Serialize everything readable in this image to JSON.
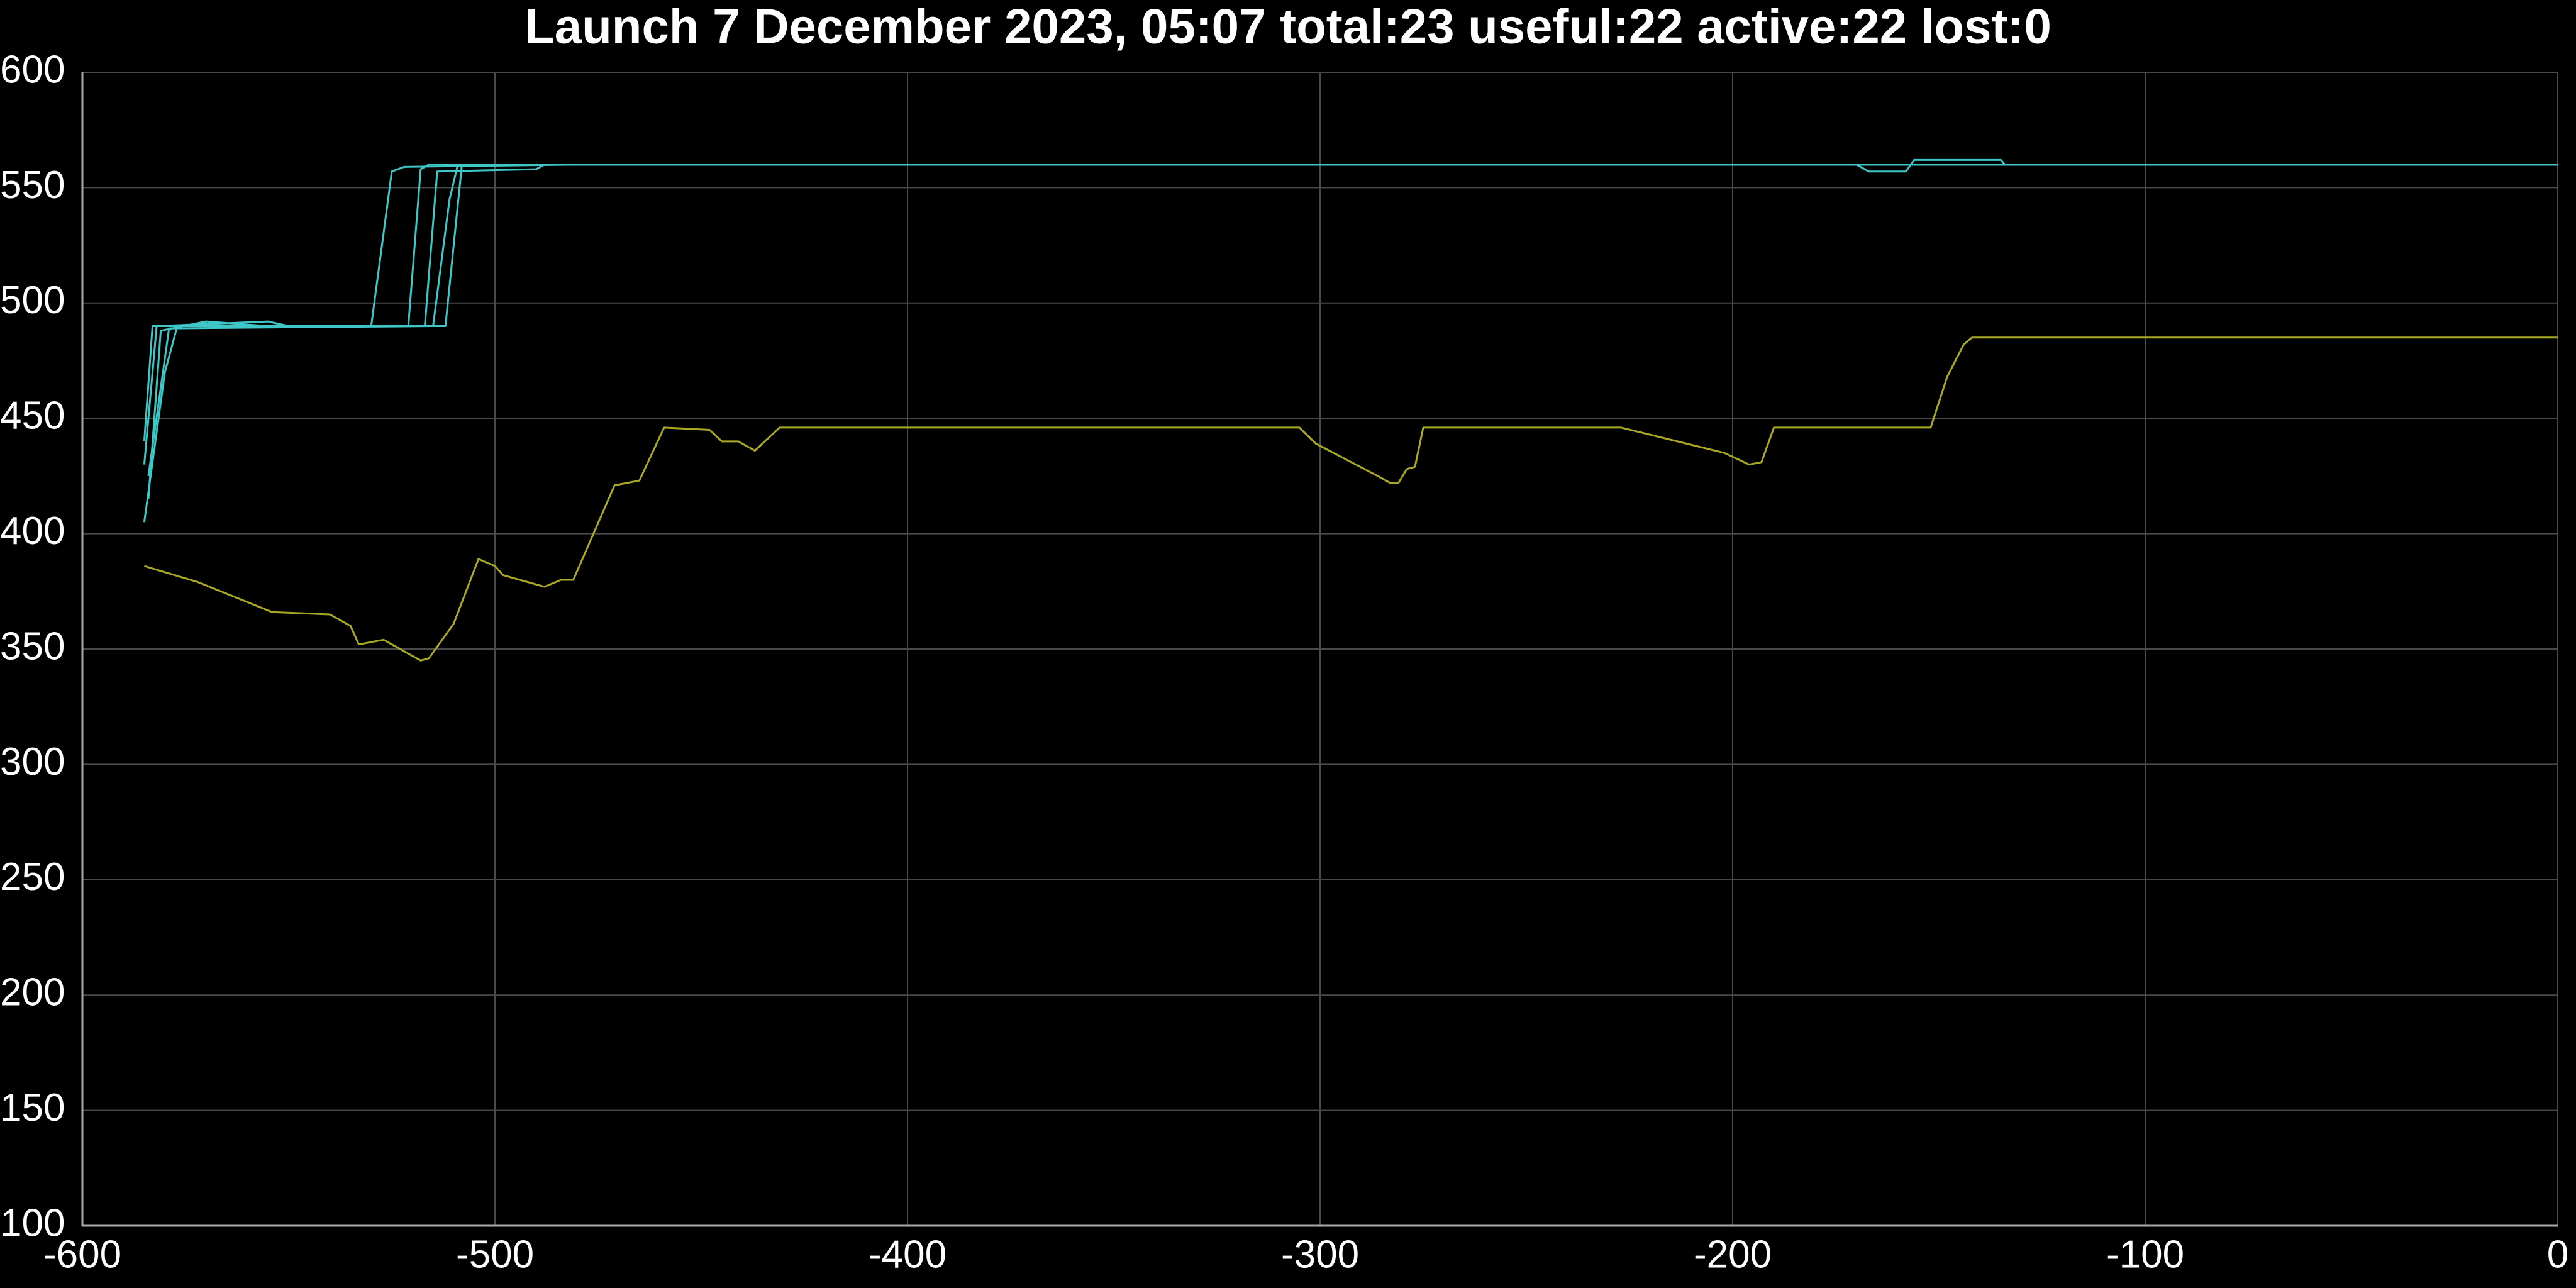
{
  "chart_data": {
    "type": "line",
    "title": "Launch 7 December 2023, 05:07 total:23 useful:22 active:22 lost:0",
    "xlim": [
      -600,
      0
    ],
    "ylim": [
      100,
      600
    ],
    "xticks": [
      -600,
      -500,
      -400,
      -300,
      -200,
      -100,
      0
    ],
    "yticks": [
      100,
      150,
      200,
      250,
      300,
      350,
      400,
      450,
      500,
      550,
      600
    ],
    "grid": true,
    "series": [
      {
        "color": "#3fc6c6",
        "x": [
          -585,
          -580,
          -577,
          -560,
          -540,
          -512,
          -508,
          0
        ],
        "values": [
          405,
          470,
          490,
          490,
          490,
          490,
          560,
          560
        ]
      },
      {
        "color": "#3fc6c6",
        "x": [
          -584,
          -581,
          -570,
          -555,
          -521,
          -518,
          -516,
          -300,
          -170,
          -167,
          -158,
          -156,
          -135,
          -134,
          0
        ],
        "values": [
          415,
          488,
          492,
          490,
          490,
          558,
          560,
          560,
          560,
          557,
          557,
          562,
          562,
          560,
          560
        ]
      },
      {
        "color": "#3fc6c6",
        "x": [
          -585,
          -583,
          -530,
          -525,
          -522,
          -480,
          0
        ],
        "values": [
          440,
          490,
          490,
          557,
          559,
          560,
          560
        ]
      },
      {
        "color": "#3fc6c6",
        "x": [
          -584,
          -579,
          -515,
          -511,
          -509,
          0
        ],
        "values": [
          425,
          489,
          490,
          545,
          560,
          560
        ]
      },
      {
        "color": "#3fc6c6",
        "x": [
          -585,
          -582,
          -555,
          -550,
          -517,
          -514,
          -490,
          -488,
          0
        ],
        "values": [
          430,
          490,
          492,
          490,
          490,
          557,
          558,
          560,
          560
        ]
      },
      {
        "color": "#a8a824",
        "x": [
          -585,
          -572,
          -554,
          -540,
          -535,
          -533,
          -527,
          -518,
          -516,
          -510,
          -504,
          -500,
          -498,
          -488,
          -484,
          -481,
          -471,
          -465,
          -459,
          -448,
          -445,
          -441,
          -437,
          -431,
          -305,
          -301,
          -286,
          -283,
          -281,
          -279,
          -277,
          -275,
          -227,
          -202,
          -196,
          -193,
          -190,
          -152,
          -148,
          -144,
          -142,
          -2,
          0
        ],
        "values": [
          386,
          379,
          366,
          365,
          360,
          352,
          354,
          345,
          346,
          361,
          389,
          386,
          382,
          377,
          380,
          380,
          421,
          423,
          446,
          445,
          440,
          440,
          436,
          446,
          446,
          439,
          425,
          422,
          422,
          428,
          429,
          446,
          446,
          435,
          430,
          431,
          446,
          446,
          468,
          482,
          485,
          485,
          485
        ]
      }
    ]
  }
}
